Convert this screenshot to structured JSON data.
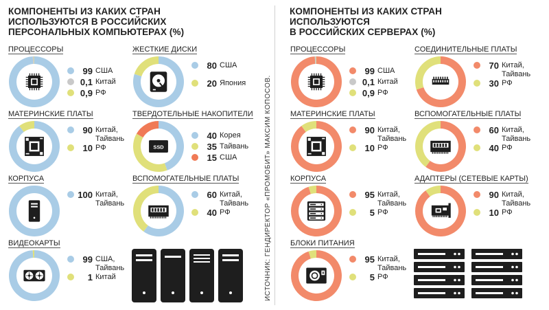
{
  "left_title": [
    "КОМПОНЕНТЫ ИЗ КАКИХ СТРАН",
    "ИСПОЛЬЗУЮТСЯ В РОССИЙСКИХ",
    "ПЕРСОНАЛЬНЫХ КОМПЬЮТЕРАХ (%)"
  ],
  "right_title": [
    "КОМПОНЕНТЫ ИЗ КАКИХ СТРАН",
    "ИСПОЛЬЗУЮТСЯ",
    "В РОССИЙСКИХ СЕРВЕРАХ (%)"
  ],
  "source": "ИСТОЧНИК: ГЕНДИРЕКТОР «ПРОМОБИТ» МАКСИМ КОПОСОВ.",
  "colors": {
    "pc_main": "#a9cce6",
    "pc_secondary": "#e0e07a",
    "pc_tertiary": "#c9c9c9",
    "korea": "#a9cce6",
    "taiwan": "#e0e07a",
    "usa_ssd": "#f07a56",
    "server_main": "#f28a6a",
    "server_secondary": "#e0e07a",
    "server_tertiary": "#c9c9c9",
    "icon_dark": "#1e1e1e"
  },
  "chart_data": [
    {
      "type": "pie",
      "group": "pc",
      "title": "ПРОЦЕССОРЫ",
      "icon": "cpu-icon",
      "series": [
        {
          "name": "США",
          "value": 99,
          "label": "99",
          "color": "#a9cce6"
        },
        {
          "name": "Китай",
          "value": 0.1,
          "label": "0,1",
          "color": "#c9c9c9"
        },
        {
          "name": "РФ",
          "value": 0.9,
          "label": "0,9",
          "color": "#e0e07a"
        }
      ]
    },
    {
      "type": "pie",
      "group": "pc",
      "title": "ЖЕСТКИЕ ДИСКИ",
      "icon": "hard-disk-icon",
      "series": [
        {
          "name": "США",
          "value": 80,
          "label": "80",
          "color": "#a9cce6"
        },
        {
          "name": "Япония",
          "value": 20,
          "label": "20",
          "color": "#e0e07a"
        }
      ]
    },
    {
      "type": "pie",
      "group": "pc",
      "title": "МАТЕРИНСКИЕ ПЛАТЫ",
      "icon": "motherboard-icon",
      "series": [
        {
          "name": "Китай, Тайвань",
          "value": 90,
          "label": "90",
          "color": "#a9cce6"
        },
        {
          "name": "РФ",
          "value": 10,
          "label": "10",
          "color": "#e0e07a"
        }
      ]
    },
    {
      "type": "pie",
      "group": "pc",
      "title": "ТВЕРДОТЕЛЬНЫЕ НАКОПИТЕЛИ",
      "icon": "ssd-icon",
      "series": [
        {
          "name": "Корея",
          "value": 40,
          "label": "40",
          "color": "#a9cce6"
        },
        {
          "name": "Тайвань",
          "value": 35,
          "label": "35",
          "color": "#e0e07a"
        },
        {
          "name": "США",
          "value": 15,
          "label": "15",
          "color": "#f07a56"
        }
      ]
    },
    {
      "type": "pie",
      "group": "pc",
      "title": "КОРПУСА",
      "icon": "pc-case-icon",
      "series": [
        {
          "name": "Китай, Тайвань",
          "value": 100,
          "label": "100",
          "color": "#a9cce6"
        }
      ]
    },
    {
      "type": "pie",
      "group": "pc",
      "title": "ВСПОМОГАТЕЛЬНЫЕ ПЛАТЫ",
      "icon": "expansion-card-icon",
      "series": [
        {
          "name": "Китай, Тайвань",
          "value": 60,
          "label": "60",
          "color": "#a9cce6"
        },
        {
          "name": "РФ",
          "value": 40,
          "label": "40",
          "color": "#e0e07a"
        }
      ]
    },
    {
      "type": "pie",
      "group": "pc",
      "title": "ВИДЕОКАРТЫ",
      "icon": "gpu-icon",
      "series": [
        {
          "name": "США, Тайвань",
          "value": 99,
          "label": "99",
          "color": "#a9cce6"
        },
        {
          "name": "Китай",
          "value": 1,
          "label": "1",
          "color": "#e0e07a"
        }
      ]
    },
    {
      "type": "pie",
      "group": "server",
      "title": "ПРОЦЕССОРЫ",
      "icon": "cpu-icon",
      "series": [
        {
          "name": "США",
          "value": 99,
          "label": "99",
          "color": "#f28a6a"
        },
        {
          "name": "Китай",
          "value": 0.1,
          "label": "0,1",
          "color": "#c9c9c9"
        },
        {
          "name": "РФ",
          "value": 0.9,
          "label": "0,9",
          "color": "#e0e07a"
        }
      ]
    },
    {
      "type": "pie",
      "group": "server",
      "title": "СОЕДИНИТЕЛЬНЫЕ ПЛАТЫ",
      "icon": "connector-board-icon",
      "series": [
        {
          "name": "Китай, Тайвань",
          "value": 70,
          "label": "70",
          "color": "#f28a6a"
        },
        {
          "name": "РФ",
          "value": 30,
          "label": "30",
          "color": "#e0e07a"
        }
      ]
    },
    {
      "type": "pie",
      "group": "server",
      "title": "МАТЕРИНСКИЕ ПЛАТЫ",
      "icon": "motherboard-icon",
      "series": [
        {
          "name": "Китай, Тайвань",
          "value": 90,
          "label": "90",
          "color": "#f28a6a"
        },
        {
          "name": "РФ",
          "value": 10,
          "label": "10",
          "color": "#e0e07a"
        }
      ]
    },
    {
      "type": "pie",
      "group": "server",
      "title": "ВСПОМОГАТЕЛЬНЫЕ ПЛАТЫ",
      "icon": "expansion-card-icon",
      "series": [
        {
          "name": "Китай, Тайвань",
          "value": 60,
          "label": "60",
          "color": "#f28a6a"
        },
        {
          "name": "РФ",
          "value": 40,
          "label": "40",
          "color": "#e0e07a"
        }
      ]
    },
    {
      "type": "pie",
      "group": "server",
      "title": "КОРПУСА",
      "icon": "server-rack-icon",
      "series": [
        {
          "name": "Китай, Тайвань",
          "value": 95,
          "label": "95",
          "color": "#f28a6a"
        },
        {
          "name": "РФ",
          "value": 5,
          "label": "5",
          "color": "#e0e07a"
        }
      ]
    },
    {
      "type": "pie",
      "group": "server",
      "title": "АДАПТЕРЫ (СЕТЕВЫЕ КАРТЫ)",
      "icon": "network-card-icon",
      "series": [
        {
          "name": "Китай, Тайвань",
          "value": 90,
          "label": "90",
          "color": "#f28a6a"
        },
        {
          "name": "РФ",
          "value": 10,
          "label": "10",
          "color": "#e0e07a"
        }
      ]
    },
    {
      "type": "pie",
      "group": "server",
      "title": "БЛОКИ ПИТАНИЯ",
      "icon": "power-supply-icon",
      "series": [
        {
          "name": "Китай, Тайвань",
          "value": 95,
          "label": "95",
          "color": "#f28a6a"
        },
        {
          "name": "РФ",
          "value": 5,
          "label": "5",
          "color": "#e0e07a"
        }
      ]
    }
  ]
}
